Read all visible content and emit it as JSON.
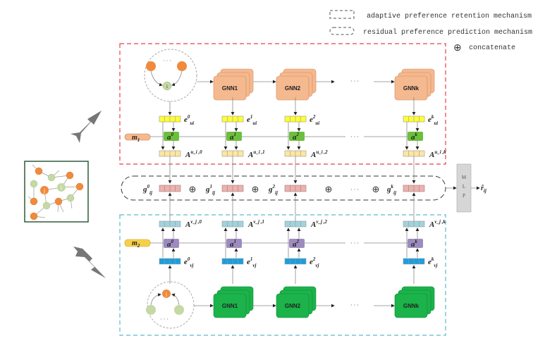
{
  "legend": {
    "retention": "adaptive preference retention mechanism",
    "prediction": "residual preference prediction mechanism",
    "concat_symbol": "⊕",
    "concat": "concatenate"
  },
  "colors": {
    "user_branch_border": "#e8414b",
    "item_branch_border": "#5bbcc9",
    "gnn_user": "#f5b98f",
    "gnn_item": "#1bb34a",
    "e_user": "#ffff33",
    "A_user": "#fde6a0",
    "a_user": "#6cbf3c",
    "e_item": "#1a9ee0",
    "A_item": "#9fd3de",
    "a_item": "#9d8bbf",
    "g": "#e9b3b0",
    "orange_node": "#f08a3c",
    "green_node": "#c4d9a5"
  },
  "graph": {
    "node_i": "i",
    "node_j": "j",
    "ellipsis": "· · ·"
  },
  "user_branch": {
    "m": {
      "base": "m",
      "sub": "1"
    },
    "gnns": [
      "GNN1",
      "GNN2",
      "GNNk"
    ],
    "ellipsis": "· · ·",
    "columns": [
      {
        "e_sup": "0",
        "a_sup": "0",
        "A_sup": "u_i ,0"
      },
      {
        "e_sup": "1",
        "a_sup": "1",
        "A_sup": "u_i ,1"
      },
      {
        "e_sup": "2",
        "a_sup": "2",
        "A_sup": "u_i ,2"
      },
      {
        "e_sup": "k",
        "a_sup": "k",
        "A_sup": "u_i ,k"
      }
    ],
    "e_base": "e",
    "e_sub": "ui",
    "a_base": "a",
    "A_base": "A"
  },
  "item_branch": {
    "m": {
      "base": "m",
      "sub": "2"
    },
    "gnns": [
      "GNN1",
      "GNN2",
      "GNNk"
    ],
    "ellipsis": "· · ·",
    "columns": [
      {
        "e_sup": "0",
        "a_sup": "0",
        "A_sup": "v_j ,0"
      },
      {
        "e_sup": "1",
        "a_sup": "1",
        "A_sup": "v_j ,1"
      },
      {
        "e_sup": "2",
        "a_sup": "2",
        "A_sup": "v_j ,2"
      },
      {
        "e_sup": "k",
        "a_sup": "k",
        "A_sup": "v_j ,k"
      }
    ],
    "e_base": "e",
    "e_sub": "vj",
    "a_base": "a",
    "A_base": "A"
  },
  "fusion": {
    "g_base": "g",
    "g_sub": "ij",
    "g_sups": [
      "0",
      "1",
      "2",
      "k"
    ],
    "ellipsis": "· · ·",
    "mlp": [
      "M",
      "L",
      "P"
    ],
    "output": {
      "base": "r̂",
      "sub": "ij"
    }
  }
}
